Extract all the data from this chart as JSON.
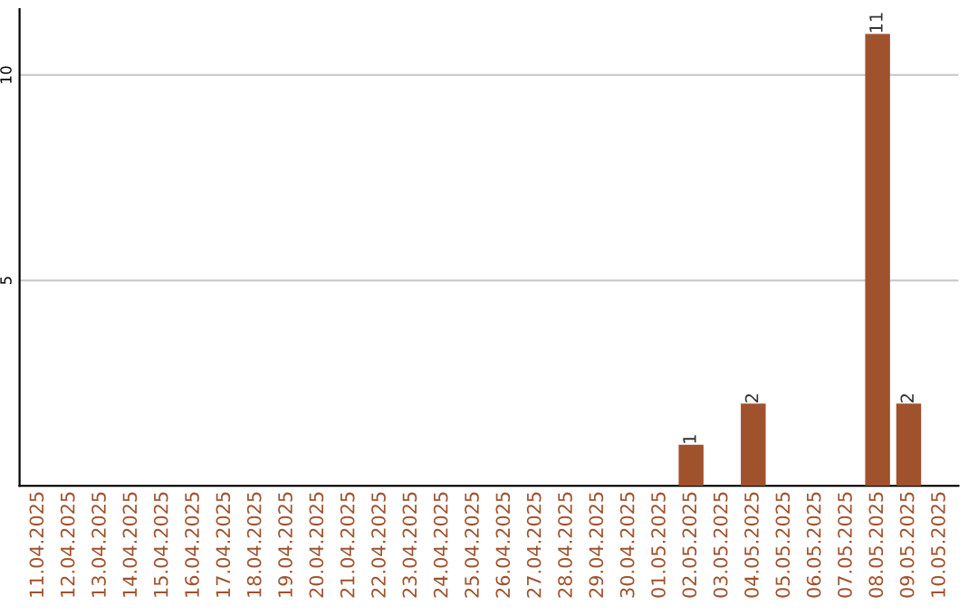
{
  "chart_data": {
    "type": "bar",
    "categories": [
      "11.04.2025",
      "12.04.2025",
      "13.04.2025",
      "14.04.2025",
      "15.04.2025",
      "16.04.2025",
      "17.04.2025",
      "18.04.2025",
      "19.04.2025",
      "20.04.2025",
      "21.04.2025",
      "22.04.2025",
      "23.04.2025",
      "24.04.2025",
      "25.04.2025",
      "26.04.2025",
      "27.04.2025",
      "28.04.2025",
      "29.04.2025",
      "30.04.2025",
      "01.05.2025",
      "02.05.2025",
      "03.05.2025",
      "04.05.2025",
      "05.05.2025",
      "06.05.2025",
      "07.05.2025",
      "08.05.2025",
      "09.05.2025",
      "10.05.2025"
    ],
    "values": [
      0,
      0,
      0,
      0,
      0,
      0,
      0,
      0,
      0,
      0,
      0,
      0,
      0,
      0,
      0,
      0,
      0,
      0,
      0,
      0,
      0,
      1,
      0,
      2,
      0,
      0,
      0,
      11,
      2,
      0
    ],
    "value_labels": [
      null,
      null,
      null,
      null,
      null,
      null,
      null,
      null,
      null,
      null,
      null,
      null,
      null,
      null,
      null,
      null,
      null,
      null,
      null,
      null,
      null,
      "1",
      null,
      "2",
      null,
      null,
      null,
      "11",
      "2",
      null
    ],
    "color": "#a0522d",
    "ylim": [
      0,
      11.6
    ],
    "yticks": [
      5,
      10
    ],
    "grid": "y"
  }
}
